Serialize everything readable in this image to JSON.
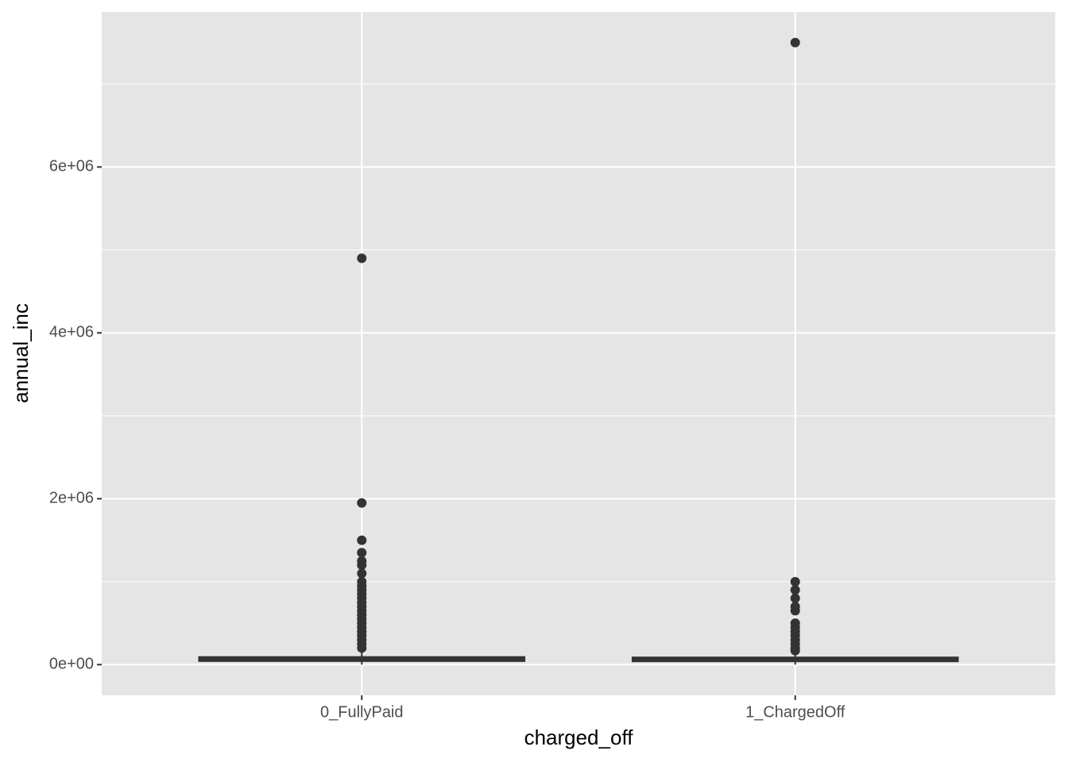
{
  "chart_data": {
    "type": "box",
    "x_label": "charged_off",
    "y_label": "annual_inc",
    "categories": [
      "0_FullyPaid",
      "1_ChargedOff"
    ],
    "boxes": [
      {
        "min": 0,
        "q1": 45000,
        "median": 65000,
        "q3": 90000,
        "max": 160000,
        "outliers": [
          4900000,
          1950000,
          1500000,
          1350000,
          1250000,
          1200000,
          1100000,
          1000000,
          950000,
          900000,
          850000,
          800000,
          750000,
          700000,
          650000,
          600000,
          550000,
          500000,
          450000,
          400000,
          350000,
          300000,
          250000,
          200000
        ]
      },
      {
        "min": 0,
        "q1": 42000,
        "median": 60000,
        "q3": 85000,
        "max": 150000,
        "outliers": [
          7500000,
          1000000,
          900000,
          800000,
          700000,
          650000,
          500000,
          450000,
          400000,
          350000,
          300000,
          250000,
          200000,
          170000
        ]
      }
    ],
    "color": "#333333",
    "ylim": [
      -370000,
      7870000
    ],
    "yticks": [
      {
        "value": 0,
        "label": "0e+00"
      },
      {
        "value": 2000000,
        "label": "2e+06"
      },
      {
        "value": 4000000,
        "label": "4e+06"
      },
      {
        "value": 6000000,
        "label": "6e+06"
      }
    ],
    "minor_yticks": [
      1000000,
      3000000,
      5000000,
      7000000
    ],
    "grid": true
  }
}
